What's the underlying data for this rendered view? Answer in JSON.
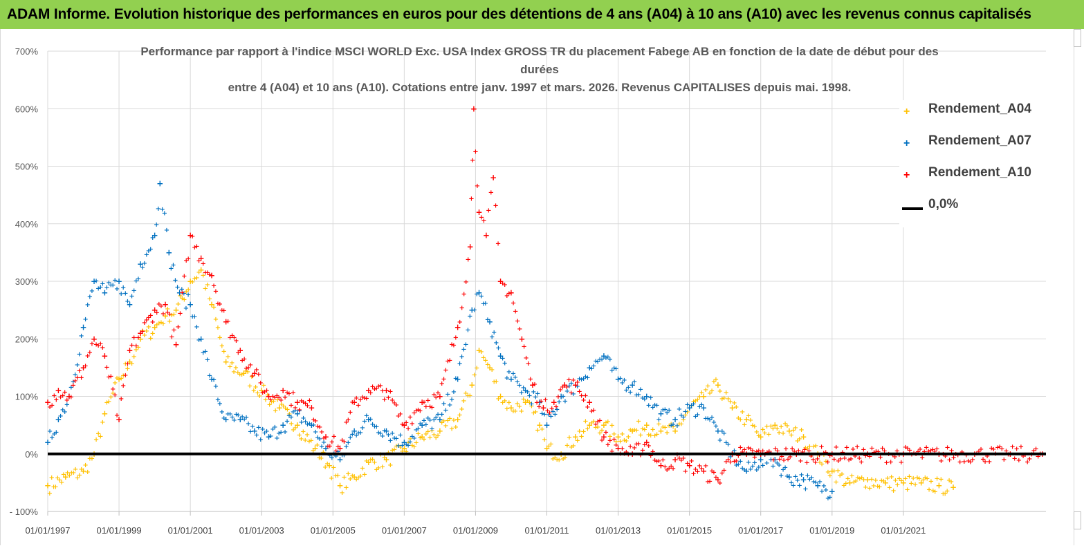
{
  "banner": {
    "title": "ADAM Informe. Evolution historique des performances en euros pour des détentions de 4 ans (A04) à 10 ans (A10) avec les revenus connus capitalisés"
  },
  "chart_data": {
    "type": "scatter",
    "title_lines": [
      "Performance par rapport à l'indice MSCI WORLD Exc. USA Index GROSS TR  du placement Fabege AB en fonction de la date de début pour des",
      "durées",
      "entre 4 (A04) et 10 ans (A10).  Cotations entre janv. 1997 et mars. 2026. Revenus CAPITALISES depuis mai. 1998."
    ],
    "xlabel": "",
    "ylabel": "",
    "x_range": [
      1997.0,
      2025.0
    ],
    "ylim": [
      -100,
      700
    ],
    "y_ticks": [
      -100,
      0,
      100,
      200,
      300,
      400,
      500,
      600,
      700
    ],
    "y_tick_labels": [
      "- 100%",
      "0%",
      "100%",
      "200%",
      "300%",
      "400%",
      "500%",
      "600%",
      "700%"
    ],
    "x_ticks": [
      1997,
      1999,
      2001,
      2003,
      2005,
      2007,
      2009,
      2011,
      2013,
      2015,
      2017,
      2019,
      2021
    ],
    "x_tick_labels": [
      "01/01/1997",
      "01/01/1999",
      "01/01/2001",
      "01/01/2003",
      "01/01/2005",
      "01/01/2007",
      "01/01/2009",
      "01/01/2011",
      "01/01/2013",
      "01/01/2015",
      "01/01/2017",
      "01/01/2019",
      "01/01/2021"
    ],
    "legend_position": "right",
    "series": [
      {
        "name": "Rendement_A04",
        "color": "#ffc000",
        "marker": "+",
        "x": [
          1997.0,
          1997.5,
          1998.0,
          1998.3,
          1998.6,
          1999.0,
          1999.3,
          1999.6,
          2000.0,
          2000.3,
          2000.6,
          2001.0,
          2001.3,
          2001.6,
          2002.0,
          2002.5,
          2003.0,
          2003.5,
          2004.0,
          2004.5,
          2004.9,
          2005.2,
          2005.6,
          2006.0,
          2006.5,
          2007.0,
          2007.5,
          2008.0,
          2008.5,
          2008.9,
          2009.1,
          2009.4,
          2009.7,
          2010.0,
          2010.4,
          2010.8,
          2011.0,
          2011.4,
          2011.8,
          2012.2,
          2012.6,
          2013.0,
          2013.4,
          2013.8,
          2014.2,
          2014.6,
          2015.0,
          2015.4,
          2015.8,
          2016.2,
          2016.6,
          2017.0,
          2017.4,
          2017.8,
          2018.2,
          2018.6,
          2019.0,
          2019.5,
          2020.0,
          2020.5,
          2021.0,
          2021.5,
          2022.0,
          2022.4
        ],
        "y": [
          -55,
          -40,
          -30,
          0,
          70,
          130,
          160,
          200,
          220,
          240,
          250,
          300,
          320,
          260,
          160,
          140,
          110,
          80,
          50,
          10,
          -20,
          -55,
          -40,
          -15,
          -10,
          10,
          30,
          40,
          60,
          120,
          180,
          150,
          100,
          80,
          90,
          50,
          10,
          0,
          30,
          50,
          50,
          30,
          40,
          50,
          40,
          40,
          80,
          100,
          120,
          80,
          60,
          30,
          50,
          40,
          30,
          0,
          -30,
          -50,
          -45,
          -50,
          -50,
          -50,
          -55,
          -58
        ]
      },
      {
        "name": "Rendement_A07",
        "color": "#0070c0",
        "marker": "+",
        "x": [
          1997.0,
          1997.3,
          1997.6,
          1998.0,
          1998.3,
          1998.6,
          1999.0,
          1999.3,
          1999.6,
          2000.0,
          2000.15,
          2000.4,
          2000.7,
          2001.0,
          2001.3,
          2001.6,
          2002.0,
          2002.4,
          2002.8,
          2003.2,
          2003.6,
          2004.0,
          2004.4,
          2004.8,
          2005.2,
          2005.6,
          2006.0,
          2006.5,
          2007.0,
          2007.5,
          2008.0,
          2008.5,
          2008.9,
          2009.1,
          2009.4,
          2009.7,
          2010.0,
          2010.4,
          2010.8,
          2011.0,
          2011.4,
          2011.8,
          2012.2,
          2012.6,
          2013.0,
          2013.4,
          2013.8,
          2014.2,
          2014.6,
          2015.0,
          2015.4,
          2015.8,
          2016.2,
          2016.6,
          2017.0,
          2017.4,
          2017.8,
          2018.2,
          2018.6,
          2019.0
        ],
        "y": [
          20,
          60,
          100,
          220,
          300,
          280,
          300,
          260,
          330,
          380,
          470,
          350,
          280,
          260,
          200,
          130,
          60,
          60,
          40,
          30,
          50,
          70,
          50,
          10,
          -10,
          40,
          60,
          40,
          20,
          50,
          60,
          130,
          250,
          280,
          230,
          170,
          130,
          110,
          90,
          50,
          100,
          120,
          150,
          170,
          130,
          120,
          100,
          70,
          60,
          80,
          80,
          40,
          0,
          -30,
          -10,
          -10,
          -40,
          -45,
          -55,
          -65
        ]
      },
      {
        "name": "Rendement_A10",
        "color": "#ff0000",
        "marker": "+",
        "x": [
          1997.0,
          1997.3,
          1997.6,
          1998.0,
          1998.3,
          1998.6,
          1999.0,
          1999.3,
          1999.6,
          2000.0,
          2000.3,
          2000.6,
          2001.0,
          2001.3,
          2001.6,
          2002.0,
          2002.4,
          2002.8,
          2003.2,
          2003.6,
          2004.0,
          2004.4,
          2004.8,
          2005.2,
          2005.6,
          2006.0,
          2006.5,
          2007.0,
          2007.5,
          2008.0,
          2008.5,
          2008.85,
          2008.95,
          2009.1,
          2009.3,
          2009.5,
          2009.7,
          2010.0,
          2010.3,
          2010.6,
          2010.9,
          2011.2,
          2011.5,
          2011.8,
          2012.2,
          2012.6,
          2013.0,
          2013.4,
          2013.8,
          2014.2,
          2014.6,
          2015.0,
          2015.4,
          2015.8,
          2016.2,
          2016.6,
          2017.0,
          2018.0,
          2019.0,
          2020.0,
          2021.0,
          2022.0,
          2023.0,
          2024.0,
          2024.9
        ],
        "y": [
          90,
          110,
          100,
          150,
          200,
          170,
          60,
          180,
          210,
          250,
          260,
          190,
          380,
          340,
          310,
          230,
          180,
          140,
          100,
          110,
          90,
          80,
          30,
          10,
          90,
          110,
          110,
          50,
          90,
          100,
          220,
          360,
          600,
          420,
          380,
          480,
          300,
          280,
          200,
          120,
          80,
          90,
          120,
          120,
          90,
          30,
          10,
          0,
          20,
          -20,
          -10,
          -20,
          -30,
          -45,
          0,
          0,
          0,
          0,
          0,
          0,
          0,
          0,
          0,
          0,
          0
        ]
      },
      {
        "name": "0,0%",
        "color": "#000000",
        "marker": "line",
        "x": [
          1997.0,
          2025.0
        ],
        "y": [
          0,
          0
        ]
      }
    ]
  }
}
